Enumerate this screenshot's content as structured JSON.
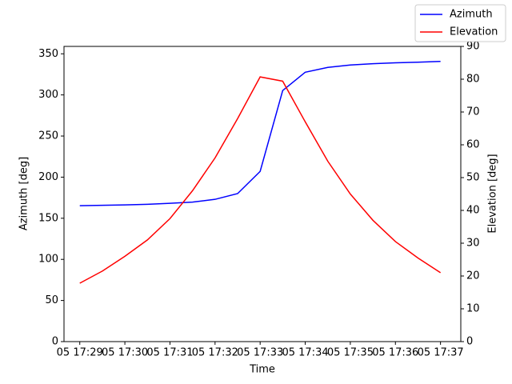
{
  "chart_data": {
    "type": "line",
    "x_label": "Time",
    "y_label": "Azimuth [deg]",
    "y2_label": "Elevation [deg]",
    "x": [
      "05 17:29:00",
      "05 17:29:30",
      "05 17:30:00",
      "05 17:30:30",
      "05 17:31:00",
      "05 17:31:30",
      "05 17:32:00",
      "05 17:32:30",
      "05 17:33:00",
      "05 17:33:30",
      "05 17:34:00",
      "05 17:34:30",
      "05 17:35:00",
      "05 17:35:30",
      "05 17:36:00",
      "05 17:36:30",
      "05 17:37:00"
    ],
    "xlim": [
      "05 17:28:39",
      "05 17:37:27"
    ],
    "xticks": [
      "05 17:29",
      "05 17:30",
      "05 17:31",
      "05 17:32",
      "05 17:33",
      "05 17:34",
      "05 17:35",
      "05 17:36",
      "05 17:37"
    ],
    "ylim": [
      0,
      359
    ],
    "yticks": [
      0,
      50,
      100,
      150,
      200,
      250,
      300,
      350
    ],
    "y2lim": [
      0,
      90
    ],
    "y2ticks": [
      0,
      10,
      20,
      30,
      40,
      50,
      60,
      70,
      80,
      90
    ],
    "legend": "upper right",
    "series": [
      {
        "name": "Azimuth",
        "color": "#0000ff",
        "values": [
          165.3,
          165.7,
          166.3,
          167,
          168.2,
          169.7,
          173,
          180,
          207,
          305.3,
          327.6,
          333.5,
          336.4,
          338,
          339,
          339.8,
          340.8
        ]
      },
      {
        "name": "Elevation",
        "color": "#ff0000",
        "axis": "y2",
        "values": [
          17.8,
          21.5,
          26,
          31,
          37.5,
          46,
          56,
          68,
          80.7,
          79.4,
          67,
          55,
          45,
          37,
          30.5,
          25.5,
          21
        ]
      }
    ]
  }
}
